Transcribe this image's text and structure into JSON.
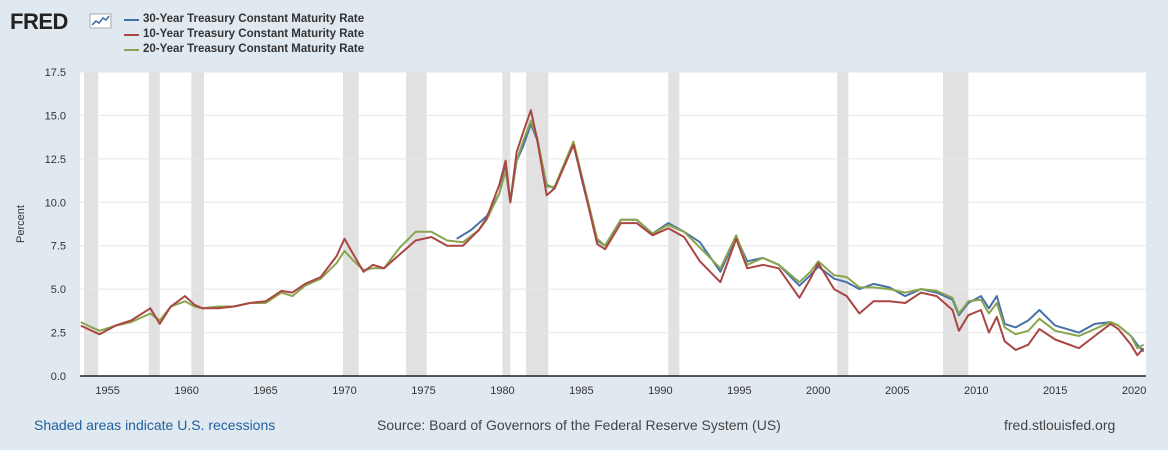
{
  "logo": {
    "text": "FRED"
  },
  "footer": {
    "recessions_note": "Shaded areas indicate U.S. recessions",
    "source": "Source: Board of Governors of the Federal Reserve System (US)",
    "site": "fred.stlouisfed.org"
  },
  "colors": {
    "background": "#e1e9f0",
    "plot_bg": "#ffffff",
    "recession": "#e1e1e1"
  },
  "chart_data": {
    "type": "line",
    "title": "",
    "xlabel": "",
    "ylabel": "Percent",
    "xlim": [
      1953.25,
      2020.75
    ],
    "ylim": [
      0,
      17.5
    ],
    "yticks": [
      "0.0",
      "2.5",
      "5.0",
      "7.5",
      "10.0",
      "12.5",
      "15.0",
      "17.5"
    ],
    "xticks": [
      "1955",
      "1960",
      "1965",
      "1970",
      "1975",
      "1980",
      "1985",
      "1990",
      "1995",
      "2000",
      "2005",
      "2010",
      "2015",
      "2020"
    ],
    "grid": true,
    "legend_position": "top-left",
    "recessions": [
      [
        1953.5,
        1954.4
      ],
      [
        1957.6,
        1958.3
      ],
      [
        1960.3,
        1961.1
      ],
      [
        1969.9,
        1970.9
      ],
      [
        1973.9,
        1975.2
      ],
      [
        1980.0,
        1980.5
      ],
      [
        1981.5,
        1982.9
      ],
      [
        1990.5,
        1991.2
      ],
      [
        2001.2,
        2001.9
      ],
      [
        2007.9,
        2009.5
      ]
    ],
    "series": [
      {
        "name": "30-Year Treasury Constant Maturity Rate",
        "color": "#4572a7",
        "x": [
          1977.1,
          1978,
          1979,
          1979.8,
          1980.2,
          1980.5,
          1980.9,
          1981.3,
          1981.8,
          1982.2,
          1982.8,
          1983.3,
          1984.5,
          1985,
          1986,
          1986.5,
          1987.5,
          1988.5,
          1989.5,
          1990.5,
          1991.5,
          1992.5,
          1993.8,
          1994.8,
          1995.5,
          1996.5,
          1997.5,
          1998.8,
          1999.5,
          2000,
          2001,
          2001.8,
          2002.6,
          2003.5,
          2004.5,
          2005.5,
          2006.5,
          2007.5,
          2008.5,
          2008.9,
          2009.5,
          2010.3,
          2010.8,
          2011.3,
          2011.8,
          2012.5,
          2013.3,
          2014,
          2015,
          2016.5,
          2017.5,
          2018.5,
          2019,
          2019.8,
          2020.2,
          2020.6
        ],
        "values": [
          7.9,
          8.4,
          9.2,
          10.5,
          12.0,
          10.0,
          12.4,
          13.2,
          14.5,
          13.6,
          11.0,
          10.8,
          13.4,
          11.4,
          7.8,
          7.5,
          9.0,
          9.0,
          8.2,
          8.8,
          8.3,
          7.7,
          6.0,
          8.0,
          6.6,
          6.8,
          6.4,
          5.2,
          5.8,
          6.3,
          5.6,
          5.4,
          5.0,
          5.3,
          5.1,
          4.6,
          5.0,
          4.8,
          4.4,
          3.5,
          4.2,
          4.6,
          3.9,
          4.6,
          3.0,
          2.8,
          3.2,
          3.8,
          2.9,
          2.5,
          3.0,
          3.1,
          2.9,
          2.3,
          1.8,
          1.4
        ]
      },
      {
        "name": "10-Year Treasury Constant Maturity Rate",
        "color": "#aa4643",
        "x": [
          1953.3,
          1954,
          1954.5,
          1955.5,
          1956.5,
          1957.7,
          1958.3,
          1959,
          1959.9,
          1960.5,
          1961,
          1962,
          1963,
          1964,
          1965,
          1966,
          1966.7,
          1967.5,
          1968.5,
          1969.5,
          1970,
          1970.5,
          1971.2,
          1971.8,
          1972.5,
          1973.5,
          1974.5,
          1975.5,
          1976.5,
          1977.5,
          1978.5,
          1979,
          1979.8,
          1980.2,
          1980.5,
          1980.9,
          1981.3,
          1981.8,
          1982.2,
          1982.8,
          1983.3,
          1984.5,
          1985,
          1986,
          1986.5,
          1987.5,
          1988.5,
          1989.5,
          1990.5,
          1991.5,
          1992.5,
          1993.8,
          1994.8,
          1995.5,
          1996.5,
          1997.5,
          1998.8,
          1999.5,
          2000,
          2001,
          2001.8,
          2002.6,
          2003.5,
          2004.5,
          2005.5,
          2006.5,
          2007.5,
          2008.5,
          2008.9,
          2009.5,
          2010.3,
          2010.8,
          2011.3,
          2011.8,
          2012.5,
          2013.3,
          2014,
          2015,
          2016.5,
          2017.5,
          2018.5,
          2019,
          2019.8,
          2020.2,
          2020.6
        ],
        "values": [
          2.9,
          2.6,
          2.4,
          2.9,
          3.2,
          3.9,
          3.0,
          4.0,
          4.6,
          4.1,
          3.9,
          3.9,
          4.0,
          4.2,
          4.3,
          4.9,
          4.8,
          5.3,
          5.7,
          6.9,
          7.9,
          7.1,
          6.0,
          6.4,
          6.2,
          7.0,
          7.8,
          8.0,
          7.5,
          7.5,
          8.4,
          9.1,
          11.0,
          12.4,
          10.0,
          12.9,
          14.0,
          15.3,
          13.6,
          10.4,
          10.8,
          13.3,
          11.5,
          7.6,
          7.3,
          8.8,
          8.8,
          8.1,
          8.5,
          8.0,
          6.6,
          5.4,
          7.9,
          6.2,
          6.4,
          6.2,
          4.5,
          5.6,
          6.5,
          5.0,
          4.6,
          3.6,
          4.3,
          4.3,
          4.2,
          4.8,
          4.6,
          3.8,
          2.6,
          3.5,
          3.8,
          2.5,
          3.4,
          2.0,
          1.5,
          1.8,
          2.7,
          2.1,
          1.6,
          2.3,
          3.0,
          2.7,
          1.8,
          1.2,
          1.6
        ]
      },
      {
        "name": "20-Year Treasury Constant Maturity Rate",
        "color": "#89a54e",
        "x": [
          1953.3,
          1954,
          1954.5,
          1955.5,
          1956.5,
          1957.7,
          1958.3,
          1959,
          1959.9,
          1960.5,
          1961,
          1962,
          1963,
          1964,
          1965,
          1966,
          1966.7,
          1967.5,
          1968.5,
          1969.5,
          1970,
          1970.5,
          1971.2,
          1971.8,
          1972.5,
          1973.5,
          1974.5,
          1975.5,
          1976.5,
          1977.5,
          1978.5,
          1979,
          1979.8,
          1980.2,
          1980.5,
          1980.9,
          1981.3,
          1981.8,
          1982.2,
          1982.8,
          1983.3,
          1984.5,
          1985,
          1986,
          1986.5,
          1987.5,
          1988.5,
          1989.5,
          1990.5,
          1991.5,
          1992.5,
          1993.8,
          1994.8,
          1995.5,
          1996.5,
          1997.5,
          1998.8,
          1999.5,
          2000,
          2001,
          2001.8,
          2002.6,
          2003.5,
          2004.5,
          2005.5,
          2006.5,
          2007.5,
          2008.5,
          2008.9,
          2009.5,
          2010.3,
          2010.8,
          2011.3,
          2011.8,
          2012.5,
          2013.3,
          2014,
          2015,
          2016.5,
          2017.5,
          2018.5,
          2019,
          2019.8,
          2020.2,
          2020.6
        ],
        "values": [
          3.1,
          2.8,
          2.6,
          2.9,
          3.1,
          3.6,
          3.2,
          4.0,
          4.3,
          4.0,
          3.9,
          4.0,
          4.0,
          4.2,
          4.2,
          4.8,
          4.6,
          5.2,
          5.6,
          6.5,
          7.2,
          6.7,
          6.1,
          6.2,
          6.2,
          7.4,
          8.3,
          8.3,
          7.8,
          7.7,
          8.4,
          9.0,
          10.5,
          11.8,
          10.0,
          12.4,
          13.5,
          14.7,
          13.7,
          10.9,
          10.9,
          13.5,
          11.6,
          7.9,
          7.5,
          9.0,
          9.0,
          8.2,
          8.7,
          8.3,
          7.4,
          6.2,
          8.1,
          6.4,
          6.8,
          6.4,
          5.4,
          6.0,
          6.6,
          5.8,
          5.7,
          5.1,
          5.1,
          5.0,
          4.8,
          5.0,
          4.9,
          4.5,
          3.6,
          4.3,
          4.4,
          3.6,
          4.2,
          2.8,
          2.4,
          2.6,
          3.3,
          2.6,
          2.3,
          2.7,
          3.1,
          2.9,
          2.3,
          1.6,
          1.8
        ]
      }
    ]
  }
}
